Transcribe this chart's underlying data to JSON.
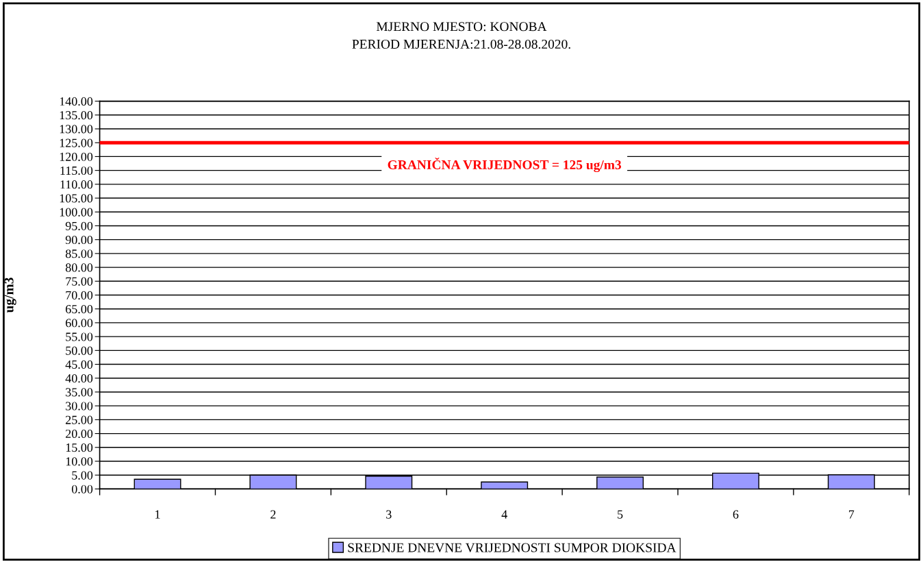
{
  "chart_data": {
    "type": "bar",
    "title": "MJERNO MJESTO: KONOBA\nPERIOD MJERENJA:21.08-28.08.2020.",
    "ylabel": "ug/m3",
    "categories": [
      "1",
      "2",
      "3",
      "4",
      "5",
      "6",
      "7"
    ],
    "series": [
      {
        "name": "SREDNJE DNEVNE VRIJEDNOSTI SUMPOR DIOKSIDA",
        "color": "#9999ff",
        "values": [
          3.5,
          5.0,
          4.6,
          2.5,
          4.3,
          5.7,
          5.1
        ]
      }
    ],
    "ylim": [
      0,
      140
    ],
    "yticks": [
      {
        "value": 0,
        "label": "0.00"
      },
      {
        "value": 5,
        "label": "5.00"
      },
      {
        "value": 10,
        "label": "10.00"
      },
      {
        "value": 15,
        "label": "15.00"
      },
      {
        "value": 20,
        "label": "20.00"
      },
      {
        "value": 25,
        "label": "25.00"
      },
      {
        "value": 30,
        "label": "30.00"
      },
      {
        "value": 35,
        "label": "35.00"
      },
      {
        "value": 40,
        "label": "40.00"
      },
      {
        "value": 45,
        "label": "45.00"
      },
      {
        "value": 50,
        "label": "50.00"
      },
      {
        "value": 55,
        "label": "55.00"
      },
      {
        "value": 60,
        "label": "60.00"
      },
      {
        "value": 65,
        "label": "65.00"
      },
      {
        "value": 70,
        "label": "70.00"
      },
      {
        "value": 75,
        "label": "75.00"
      },
      {
        "value": 80,
        "label": "80.00"
      },
      {
        "value": 85,
        "label": "85.00"
      },
      {
        "value": 90,
        "label": "90.00"
      },
      {
        "value": 95,
        "label": "95.00"
      },
      {
        "value": 100,
        "label": "100.00"
      },
      {
        "value": 105,
        "label": "105.00"
      },
      {
        "value": 110,
        "label": "110.00"
      },
      {
        "value": 115,
        "label": "115.00"
      },
      {
        "value": 120,
        "label": "120.00"
      },
      {
        "value": 125,
        "label": "125.00"
      },
      {
        "value": 130,
        "label": "130.00"
      },
      {
        "value": 135,
        "label": "135.00"
      },
      {
        "value": 140,
        "label": "140.00"
      }
    ],
    "ref_lines": [
      {
        "axis": "y",
        "value": 125,
        "label": "GRANIČNA VRIJEDNOST = 125 ug/m3",
        "color": "#ff0000",
        "line_style": "solid"
      }
    ],
    "grid": "y",
    "legend": "bottom"
  }
}
